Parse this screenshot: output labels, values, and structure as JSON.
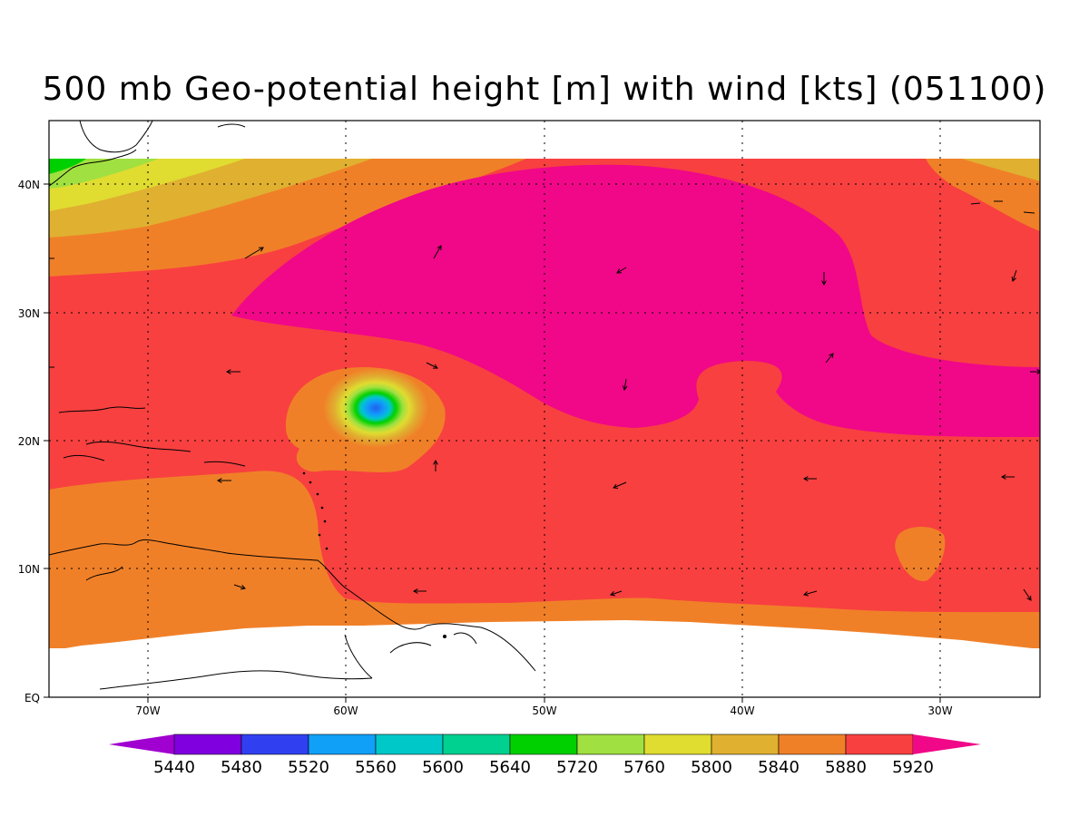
{
  "title": "500 mb Geo-potential height [m] with wind [kts] (051100)",
  "axes": {
    "lon_labels": [
      "70W",
      "60W",
      "50W",
      "40W",
      "30W"
    ],
    "lat_labels": [
      "40N",
      "30N",
      "20N",
      "10N",
      "EQ"
    ],
    "lon_range": [
      -75,
      -25
    ],
    "lat_range": [
      0,
      45
    ],
    "grid": "dotted"
  },
  "colorbar": {
    "labels": [
      "5440",
      "5480",
      "5520",
      "5560",
      "5600",
      "5640",
      "5720",
      "5760",
      "5800",
      "5840",
      "5880",
      "5920"
    ],
    "colors": [
      "#a000d0",
      "#8000e0",
      "#3040f0",
      "#10a0f8",
      "#00c8c8",
      "#00d090",
      "#00d000",
      "#a0e040",
      "#e0dc30",
      "#e0b030",
      "#f08028",
      "#f84040",
      "#f00888"
    ]
  },
  "chart_data": {
    "type": "heatmap",
    "title": "500 mb Geo-potential height [m] with wind [kts] (051100)",
    "variable": "500 mb geopotential height",
    "unit": "m",
    "levels": [
      5440,
      5480,
      5520,
      5560,
      5600,
      5640,
      5720,
      5760,
      5800,
      5840,
      5880,
      5920
    ],
    "xlim": [
      -75,
      -25
    ],
    "ylim": [
      0,
      45
    ],
    "features": [
      {
        "type": "low",
        "lon": -58.5,
        "lat": 22.5,
        "min_height": 5520
      },
      {
        "type": "high-ridge",
        "lon_range": [
          -65,
          -25
        ],
        "lat_range": [
          21,
          42
        ],
        "min_height": 5920
      },
      {
        "type": "isolated-lower",
        "lon": -34,
        "lat": 11,
        "height": 5880
      }
    ]
  }
}
